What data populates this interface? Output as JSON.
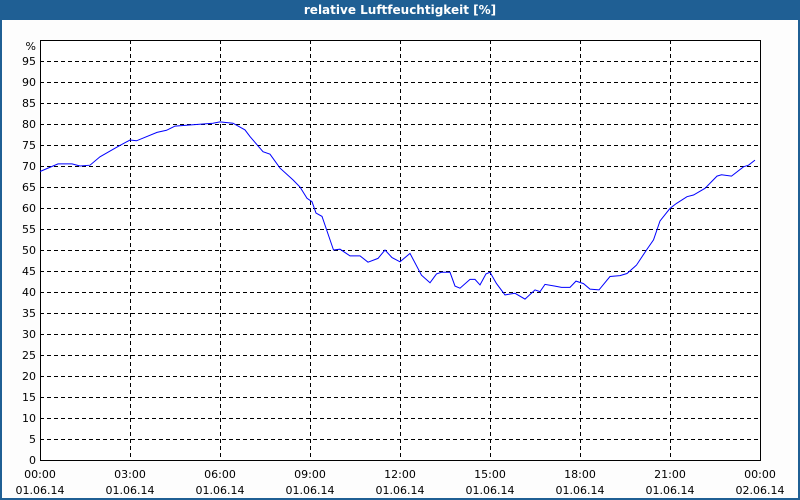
{
  "window": {
    "title": "relative Luftfeuchtigkeit [%]"
  },
  "colors": {
    "titlebar": "#1f5f94",
    "line": "#0000ff",
    "grid": "#000000",
    "background": "#fdfdfd"
  },
  "chart_data": {
    "type": "line",
    "title": "relative Luftfeuchtigkeit [%]",
    "ylabel": "%",
    "ylim": [
      0,
      100
    ],
    "yticks": [
      0,
      5,
      10,
      15,
      20,
      25,
      30,
      35,
      40,
      45,
      50,
      55,
      60,
      65,
      70,
      75,
      80,
      85,
      90,
      95
    ],
    "xlim": [
      "01.06.14 00:00",
      "02.06.14 00:00"
    ],
    "xticks": [
      {
        "time": "00:00",
        "date": "01.06.14"
      },
      {
        "time": "03:00",
        "date": "01.06.14"
      },
      {
        "time": "06:00",
        "date": "01.06.14"
      },
      {
        "time": "09:00",
        "date": "01.06.14"
      },
      {
        "time": "12:00",
        "date": "01.06.14"
      },
      {
        "time": "15:00",
        "date": "01.06.14"
      },
      {
        "time": "18:00",
        "date": "01.06.14"
      },
      {
        "time": "21:00",
        "date": "01.06.14"
      },
      {
        "time": "00:00",
        "date": "02.06.14"
      }
    ],
    "grid": true,
    "series": [
      {
        "x": [
          "00:00",
          "00:36",
          "01:04",
          "01:20",
          "01:40",
          "02:00",
          "02:34",
          "03:00",
          "03:13",
          "03:54",
          "04:13",
          "04:30",
          "05:06",
          "05:46",
          "06:00",
          "06:26",
          "06:50",
          "07:00",
          "07:26",
          "07:40",
          "08:00",
          "08:26",
          "08:40",
          "08:54",
          "09:04",
          "09:12",
          "09:24",
          "09:47",
          "10:00",
          "10:20",
          "10:40",
          "10:56",
          "11:16",
          "11:30",
          "11:44",
          "12:00",
          "12:20",
          "12:43",
          "13:00",
          "13:13",
          "13:23",
          "13:40",
          "13:50",
          "14:00",
          "14:20",
          "14:30",
          "14:40",
          "14:52",
          "15:00",
          "15:13",
          "15:30",
          "15:50",
          "16:10",
          "16:30",
          "16:40",
          "16:50",
          "17:10",
          "17:23",
          "17:40",
          "17:52",
          "18:07",
          "18:20",
          "18:38",
          "19:00",
          "19:20",
          "19:34",
          "19:53",
          "20:13",
          "20:27",
          "20:40",
          "21:00",
          "21:13",
          "21:34",
          "21:47",
          "22:10",
          "22:34",
          "22:43",
          "23:03",
          "23:27",
          "23:37",
          "23:50"
        ],
        "y": [
          68.7,
          70.5,
          70.5,
          70.0,
          70.2,
          72.2,
          74.5,
          76.2,
          76.0,
          78.0,
          78.5,
          79.5,
          79.8,
          80.2,
          80.5,
          80.2,
          78.6,
          77.0,
          73.4,
          72.8,
          69.5,
          66.7,
          65.0,
          62.3,
          61.5,
          58.8,
          58.0,
          50.0,
          50.2,
          48.6,
          48.6,
          47.1,
          48.0,
          50.0,
          48.2,
          47.2,
          49.2,
          44.0,
          42.2,
          44.3,
          44.7,
          44.7,
          41.4,
          40.9,
          43.0,
          43.0,
          41.7,
          44.3,
          44.7,
          42.0,
          39.3,
          39.7,
          38.3,
          40.5,
          40.1,
          41.8,
          41.4,
          41.1,
          41.1,
          42.6,
          42.0,
          40.7,
          40.5,
          43.7,
          43.9,
          44.4,
          46.4,
          50.0,
          52.4,
          56.9,
          59.9,
          61.1,
          62.7,
          63.1,
          64.7,
          67.6,
          67.9,
          67.6,
          69.8,
          70.2,
          71.4
        ]
      }
    ]
  }
}
